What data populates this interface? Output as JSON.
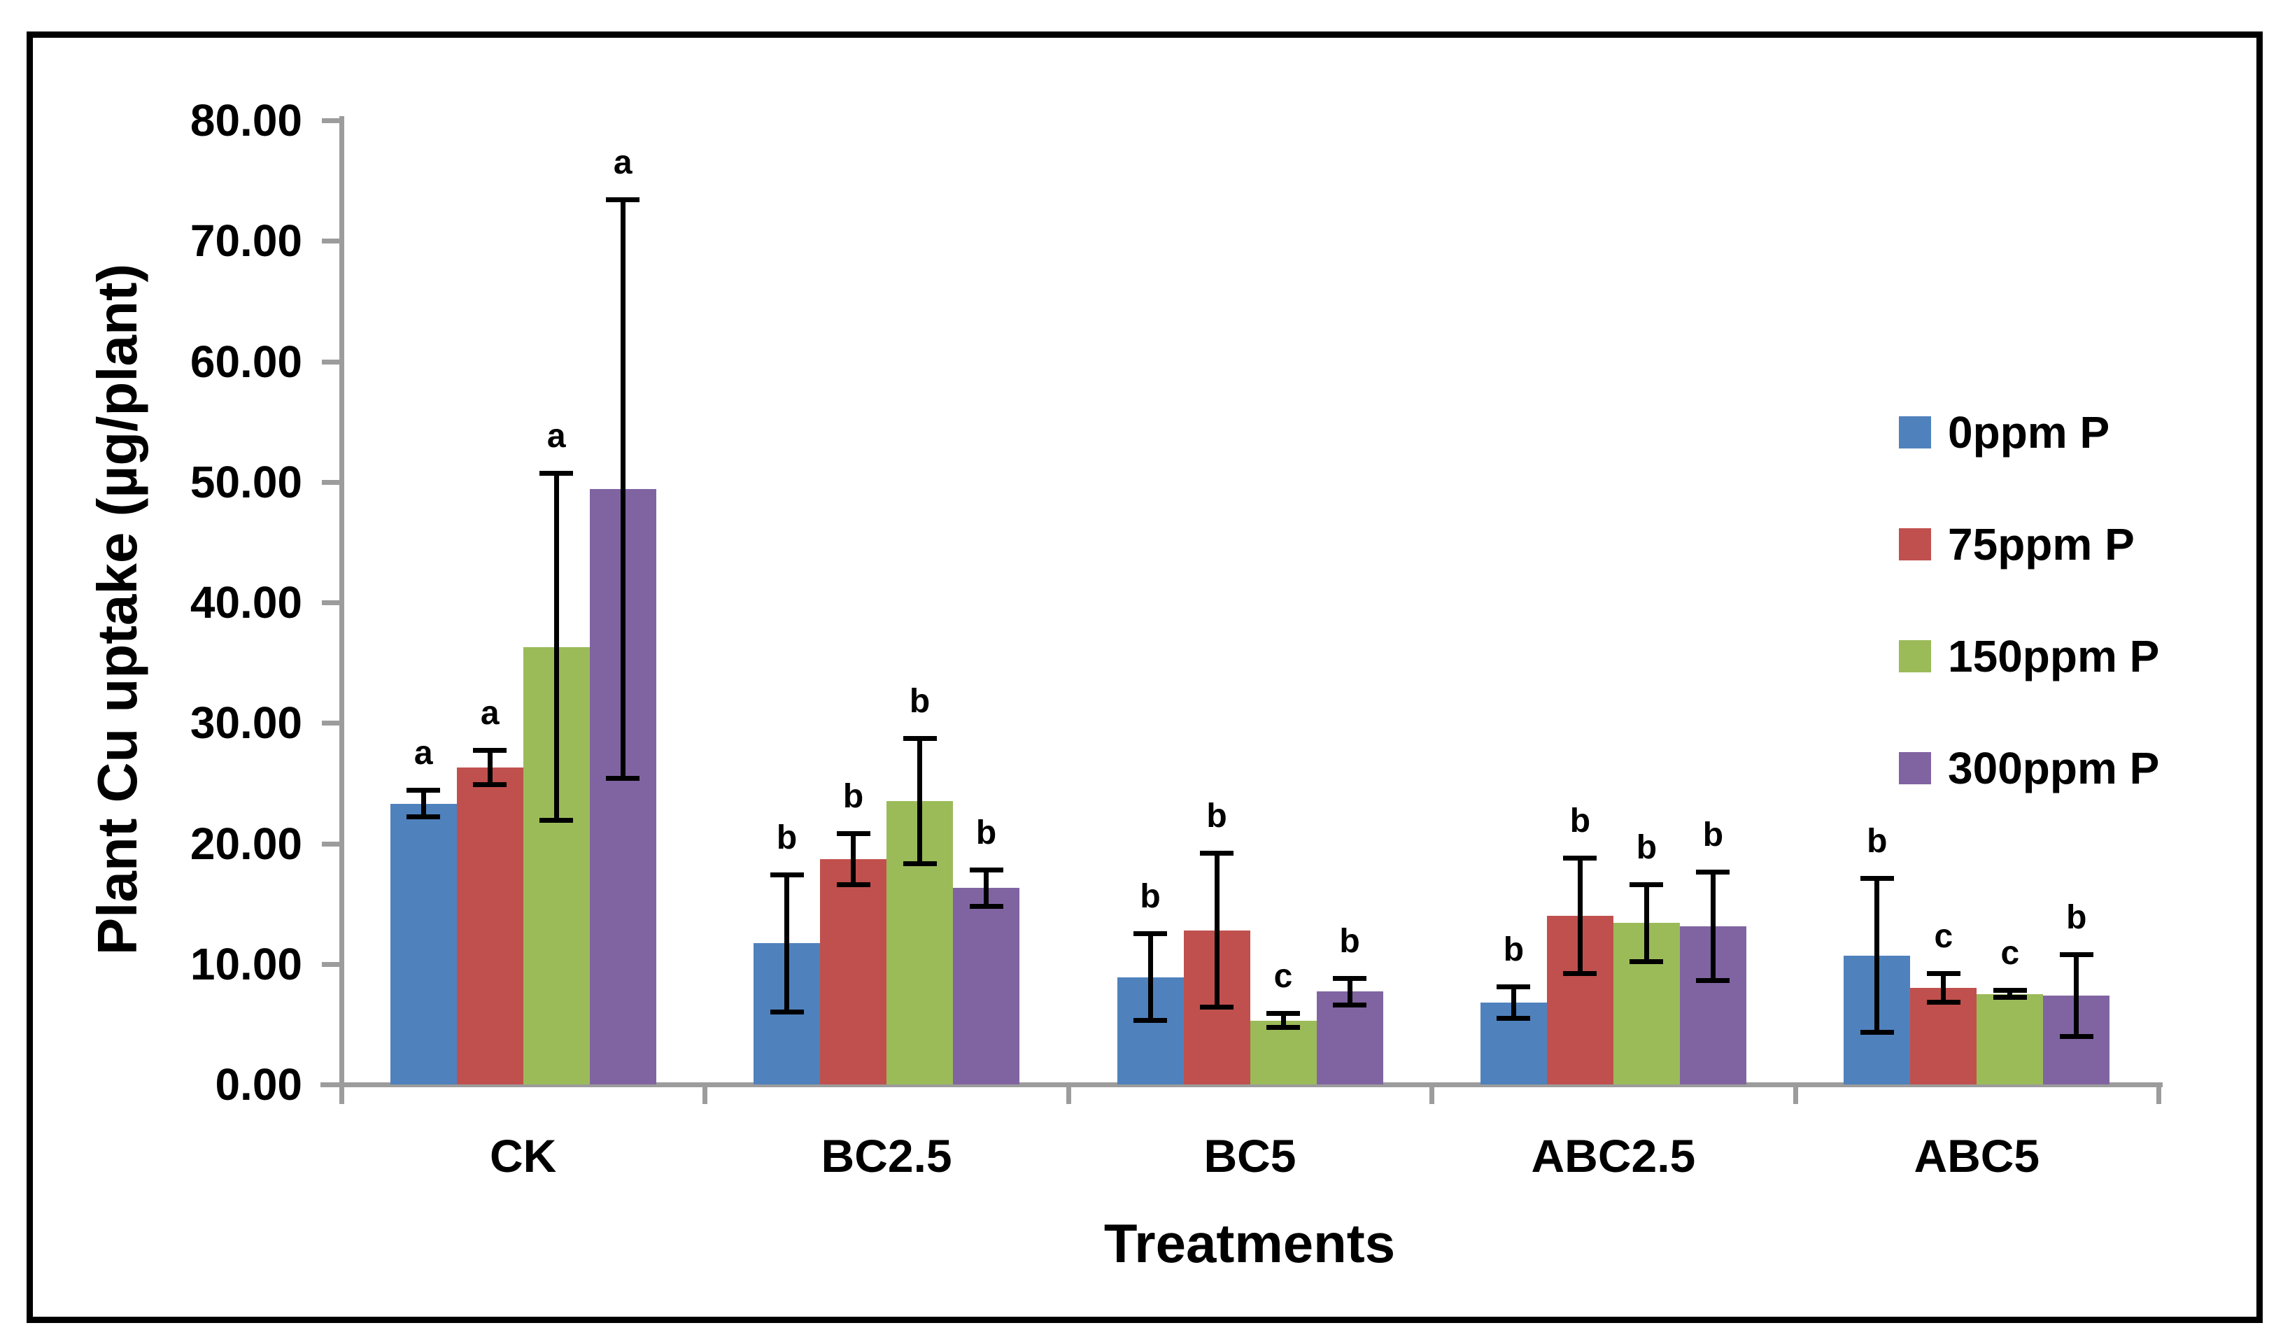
{
  "chart_data": {
    "type": "bar",
    "title": "",
    "xlabel": "Treatments",
    "ylabel": "Plant Cu uptake (µg/plant)",
    "categories": [
      "CK",
      "BC2.5",
      "BC5",
      "ABC2.5",
      "ABC5"
    ],
    "y_axis": {
      "min": 0,
      "max": 80,
      "step": 10,
      "tick_labels": [
        "0.00",
        "10.00",
        "20.00",
        "30.00",
        "40.00",
        "50.00",
        "60.00",
        "70.00",
        "80.00"
      ]
    },
    "grid": false,
    "legend_position": "right",
    "error_bars": true,
    "series": [
      {
        "name": "0ppm P",
        "color": "#4F81BD",
        "values": [
          23.3,
          11.7,
          8.9,
          6.8,
          10.7
        ],
        "errors": [
          1.3,
          5.9,
          3.8,
          1.5,
          6.6
        ],
        "letters": [
          "a",
          "b",
          "b",
          "b",
          "b"
        ]
      },
      {
        "name": "75ppm P",
        "color": "#C0504D",
        "values": [
          26.3,
          18.7,
          12.8,
          14.0,
          8.0
        ],
        "errors": [
          1.6,
          2.3,
          6.6,
          5.0,
          1.4
        ],
        "letters": [
          "a",
          "b",
          "b",
          "b",
          "c"
        ]
      },
      {
        "name": "150ppm P",
        "color": "#9BBB59",
        "values": [
          36.3,
          23.5,
          5.3,
          13.4,
          7.5
        ],
        "errors": [
          14.6,
          5.4,
          0.8,
          3.4,
          0.5
        ],
        "letters": [
          "a",
          "b",
          "c",
          "b",
          "c"
        ]
      },
      {
        "name": "300ppm P",
        "color": "#8064A2",
        "values": [
          49.4,
          16.3,
          7.7,
          13.1,
          7.4
        ],
        "errors": [
          24.2,
          1.7,
          1.3,
          4.7,
          3.6
        ],
        "letters": [
          "a",
          "b",
          "b",
          "b",
          "b"
        ]
      }
    ],
    "axis_color": "#9C9C9C",
    "text_color": "#000000"
  }
}
